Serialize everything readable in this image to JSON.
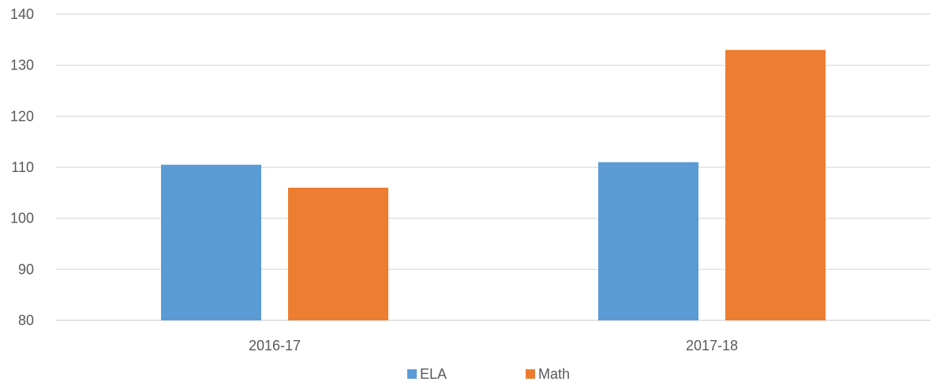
{
  "chart_data": {
    "type": "bar",
    "categories": [
      "2016-17",
      "2017-18"
    ],
    "series": [
      {
        "name": "ELA",
        "values": [
          110.5,
          111
        ],
        "color": "#5b9bd5"
      },
      {
        "name": "Math",
        "values": [
          106,
          133
        ],
        "color": "#ed7d31"
      }
    ],
    "ylim": [
      80,
      140
    ],
    "yticks": [
      80,
      90,
      100,
      110,
      120,
      130,
      140
    ],
    "grid": true,
    "legend_position": "bottom"
  }
}
